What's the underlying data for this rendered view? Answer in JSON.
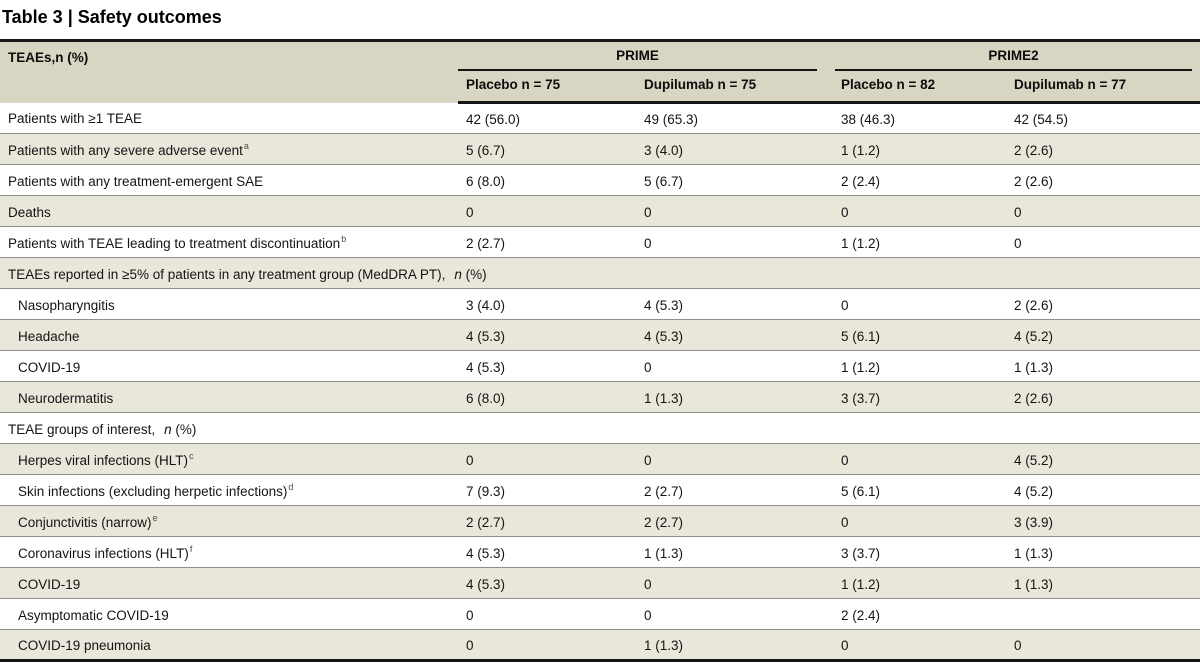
{
  "title": "Table 3 | Safety outcomes",
  "colors": {
    "header_bg": "#d9d5c3",
    "row_alt_bg": "#e9e6da",
    "rule_black": "#161616",
    "rule_gray": "#8f8f8f"
  },
  "table": {
    "corner_label": "TEAEs,n (%)",
    "groups": [
      {
        "label": "PRIME"
      },
      {
        "label": "PRIME2"
      }
    ],
    "subheaders": [
      "Placebo n = 75",
      "Dupilumab n = 75",
      "Placebo n = 82",
      "Dupilumab n = 77"
    ],
    "rows": [
      {
        "type": "data",
        "label": "Patients with ≥1 TEAE",
        "sup": "",
        "indent": false,
        "values": [
          "42 (56.0)",
          "49 (65.3)",
          "38 (46.3)",
          "42 (54.5)"
        ]
      },
      {
        "type": "data",
        "label": "Patients with any severe adverse event",
        "sup": "a",
        "indent": false,
        "values": [
          "5 (6.7)",
          "3 (4.0)",
          "1 (1.2)",
          "2 (2.6)"
        ]
      },
      {
        "type": "data",
        "label": "Patients with any treatment-emergent SAE",
        "sup": "",
        "indent": false,
        "values": [
          "6 (8.0)",
          "5 (6.7)",
          "2 (2.4)",
          "2 (2.6)"
        ]
      },
      {
        "type": "data",
        "label": "Deaths",
        "sup": "",
        "indent": false,
        "values": [
          "0",
          "0",
          "0",
          "0"
        ]
      },
      {
        "type": "data",
        "label": "Patients with TEAE leading to treatment discontinuation",
        "sup": "b",
        "indent": false,
        "values": [
          "2 (2.7)",
          "0",
          "1 (1.2)",
          "0"
        ]
      },
      {
        "type": "section",
        "pre": "TEAEs reported in ≥5% of patients in any treatment group (MedDRA PT),",
        "n": "n",
        "post": " (%)"
      },
      {
        "type": "data",
        "label": "Nasopharyngitis",
        "sup": "",
        "indent": true,
        "values": [
          "3 (4.0)",
          "4 (5.3)",
          "0",
          "2 (2.6)"
        ]
      },
      {
        "type": "data",
        "label": "Headache",
        "sup": "",
        "indent": true,
        "values": [
          "4 (5.3)",
          "4 (5.3)",
          "5 (6.1)",
          "4 (5.2)"
        ]
      },
      {
        "type": "data",
        "label": "COVID-19",
        "sup": "",
        "indent": true,
        "values": [
          "4 (5.3)",
          "0",
          "1 (1.2)",
          "1 (1.3)"
        ]
      },
      {
        "type": "data",
        "label": "Neurodermatitis",
        "sup": "",
        "indent": true,
        "values": [
          "6 (8.0)",
          "1 (1.3)",
          "3 (3.7)",
          "2 (2.6)"
        ]
      },
      {
        "type": "section",
        "pre": "TEAE groups of interest,",
        "n": "n",
        "post": " (%)"
      },
      {
        "type": "data",
        "label": "Herpes viral infections (HLT)",
        "sup": "c",
        "indent": true,
        "values": [
          "0",
          "0",
          "0",
          "4 (5.2)"
        ]
      },
      {
        "type": "data",
        "label": "Skin infections (excluding herpetic infections)",
        "sup": "d",
        "indent": true,
        "values": [
          "7 (9.3)",
          "2 (2.7)",
          "5 (6.1)",
          "4 (5.2)"
        ]
      },
      {
        "type": "data",
        "label": "Conjunctivitis (narrow)",
        "sup": "e",
        "indent": true,
        "values": [
          "2 (2.7)",
          "2 (2.7)",
          "0",
          "3 (3.9)"
        ]
      },
      {
        "type": "data",
        "label": "Coronavirus infections (HLT)",
        "sup": "f",
        "indent": true,
        "values": [
          "4 (5.3)",
          "1 (1.3)",
          "3 (3.7)",
          "1 (1.3)"
        ]
      },
      {
        "type": "data",
        "label": "COVID-19",
        "sup": "",
        "indent": true,
        "values": [
          "4 (5.3)",
          "0",
          "1 (1.2)",
          "1 (1.3)"
        ]
      },
      {
        "type": "data",
        "label": "Asymptomatic COVID-19",
        "sup": "",
        "indent": true,
        "values": [
          "0",
          "0",
          "2 (2.4)",
          ""
        ]
      },
      {
        "type": "data",
        "label": "COVID-19 pneumonia",
        "sup": "",
        "indent": true,
        "values": [
          "0",
          "1 (1.3)",
          "0",
          "0"
        ]
      }
    ]
  }
}
